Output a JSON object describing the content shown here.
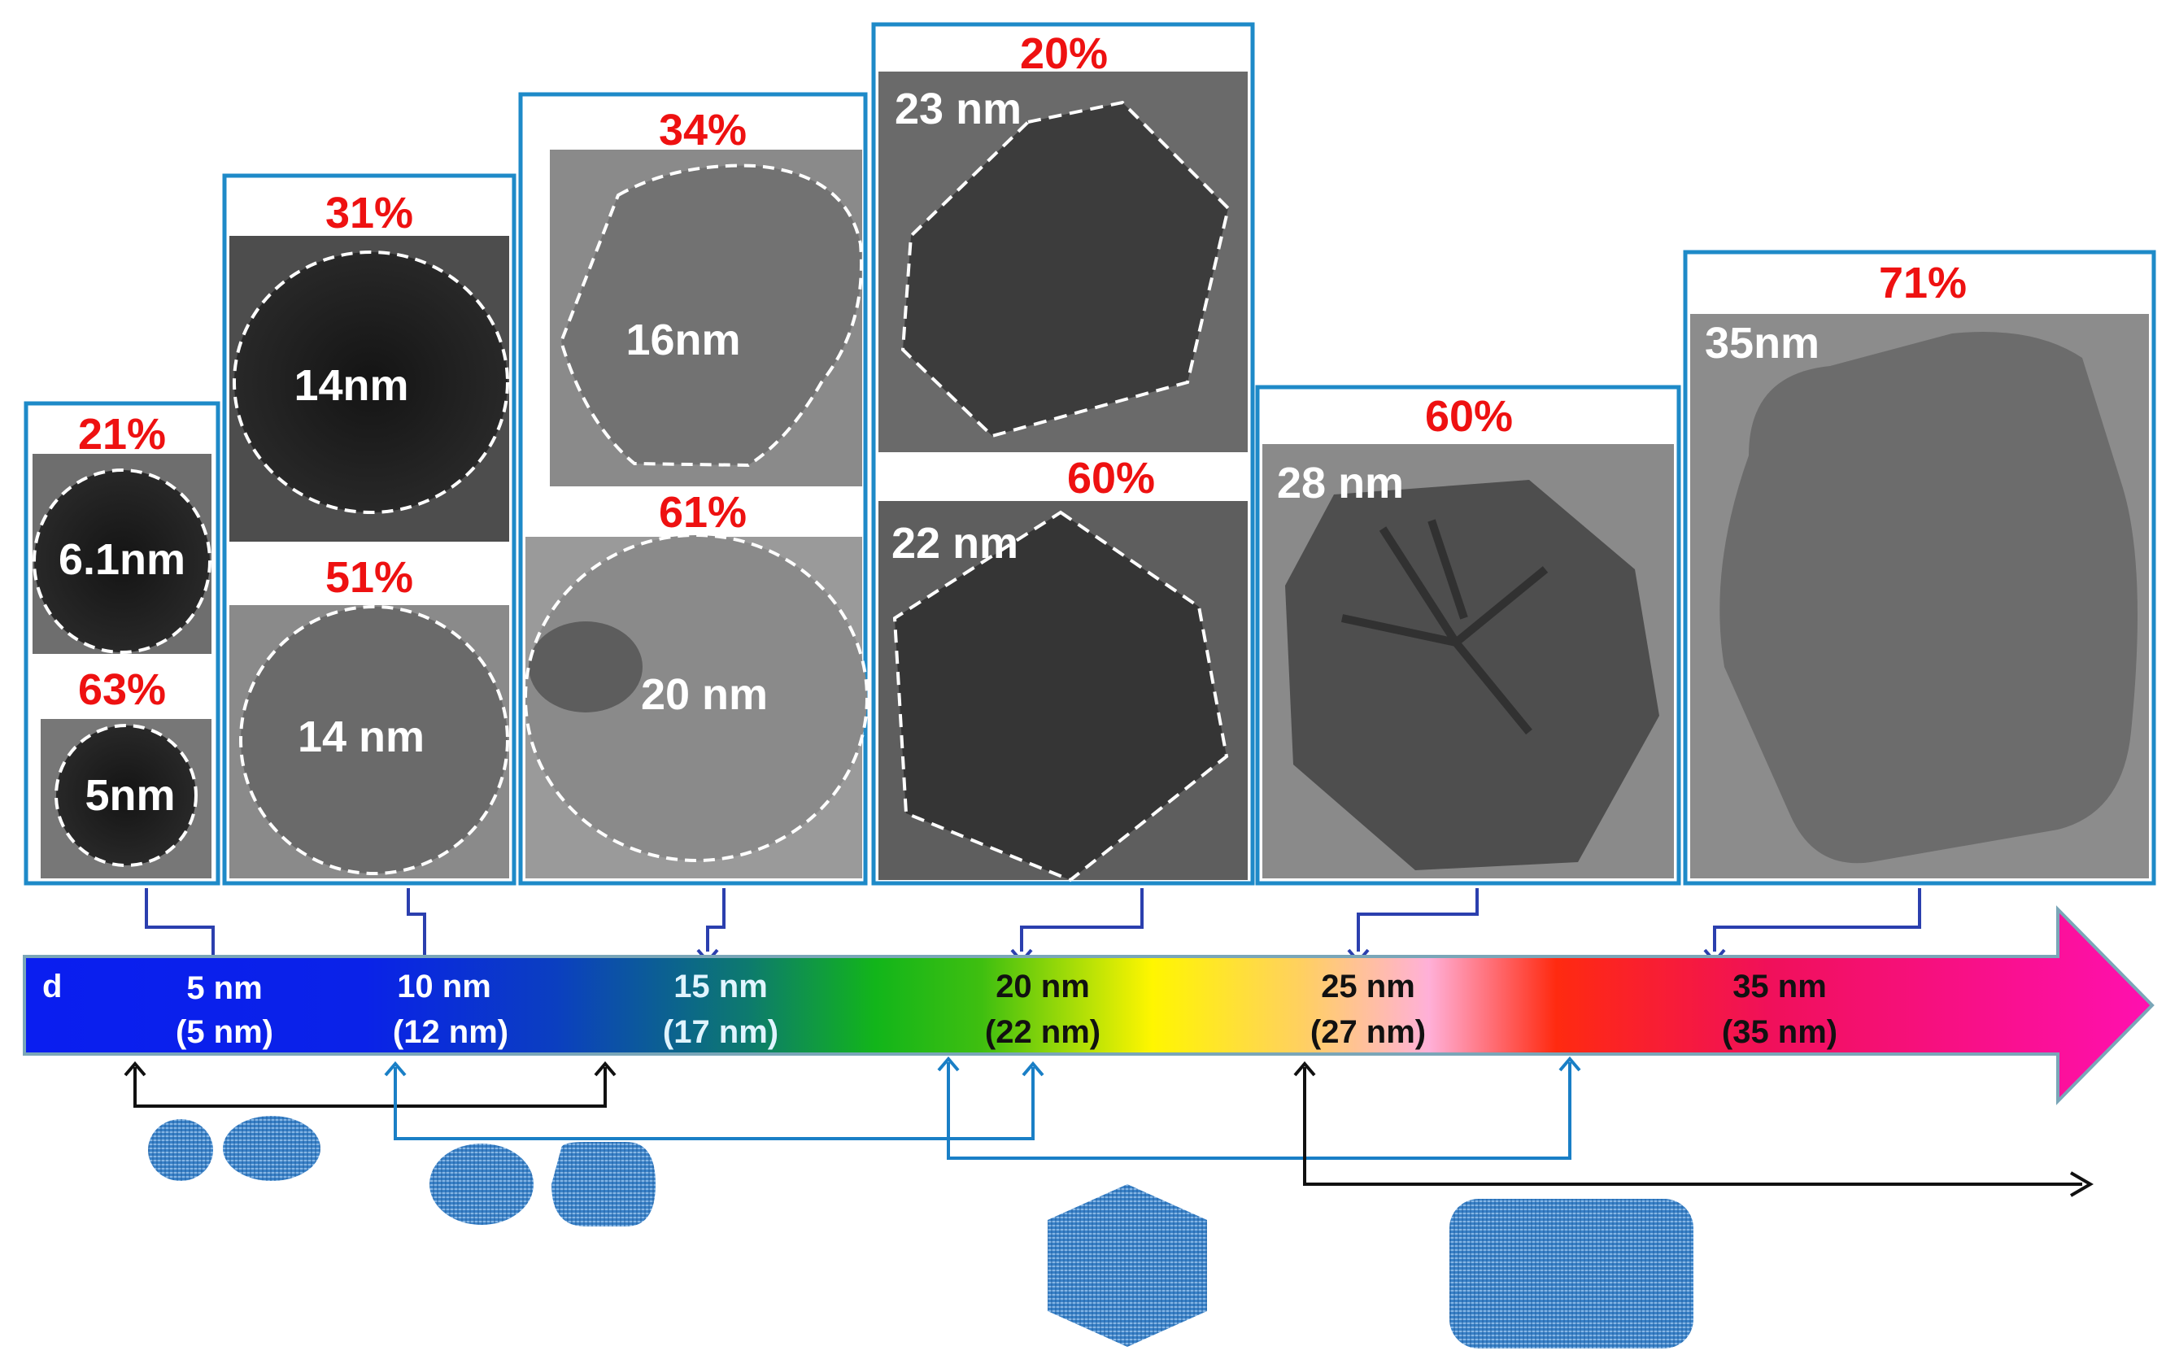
{
  "colors": {
    "panel_border": "#1e8ac8",
    "percent_text": "#ee1111",
    "arrow_blue": "#1a7fc6",
    "arrow_black": "#111111",
    "pointer_navy": "#2b3fae"
  },
  "panels": [
    {
      "id": "p5",
      "cells": [
        {
          "percent": "21%",
          "size": "6.1nm",
          "shape": "ellipse"
        },
        {
          "percent": "63%",
          "size": "5nm",
          "shape": "circle"
        }
      ]
    },
    {
      "id": "p10",
      "cells": [
        {
          "percent": "31%",
          "size": "14nm",
          "shape": "circle"
        },
        {
          "percent": "51%",
          "size": "14 nm",
          "shape": "circle"
        }
      ]
    },
    {
      "id": "p15",
      "cells": [
        {
          "percent": "34%",
          "size": "16nm",
          "shape": "faceted"
        },
        {
          "percent": "61%",
          "size": "20 nm",
          "shape": "ellipse"
        }
      ]
    },
    {
      "id": "p20",
      "cells": [
        {
          "percent": "20%",
          "size": "23 nm",
          "shape": "hexagon"
        },
        {
          "percent": "60%",
          "size": "22 nm",
          "shape": "hexagon"
        }
      ]
    },
    {
      "id": "p25",
      "cells": [
        {
          "percent": "60%",
          "size": "28 nm",
          "shape": "octagon"
        }
      ]
    },
    {
      "id": "p35",
      "cells": [
        {
          "percent": "71%",
          "size": "35nm",
          "shape": "rounded-square"
        }
      ]
    }
  ],
  "axis": {
    "symbol": "d",
    "ticks": [
      {
        "nominal": "5 nm",
        "measured": "(5 nm)",
        "color": "#ffffff"
      },
      {
        "nominal": "10 nm",
        "measured": "(12 nm)",
        "color": "#ffffff"
      },
      {
        "nominal": "15 nm",
        "measured": "(17 nm)",
        "color": "#e0f4ff"
      },
      {
        "nominal": "20 nm",
        "measured": "(22 nm)",
        "color": "#111111"
      },
      {
        "nominal": "25 nm",
        "measured": "(27 nm)",
        "color": "#111111"
      },
      {
        "nominal": "35 nm",
        "measured": "(35 nm)",
        "color": "#111111"
      }
    ]
  },
  "shape_icons": [
    {
      "name": "small-spheres-icon"
    },
    {
      "name": "spheres-icon"
    },
    {
      "name": "hexagon-icon"
    },
    {
      "name": "rounded-rectangle-icon"
    }
  ]
}
